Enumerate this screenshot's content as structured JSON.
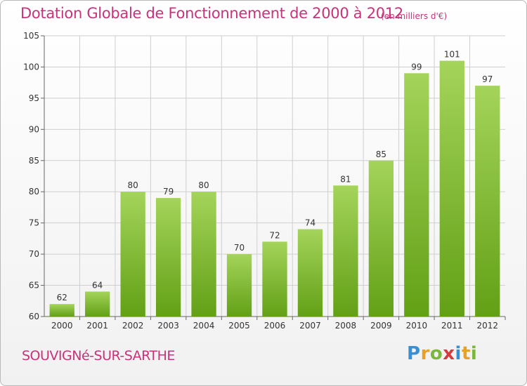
{
  "header": {
    "title": "Dotation Globale de Fonctionnement de 2000 à 2012",
    "subtitle": "(en milliers d'€)"
  },
  "footer": {
    "commune": "SOUVIGNé-SUR-SARTHE",
    "logo_text": "Proxiti"
  },
  "colors": {
    "title": "#c8327a",
    "bar_light": "#a4d45a",
    "bar_dark": "#62a016",
    "grid": "#cfcfcf"
  },
  "chart_data": {
    "type": "bar",
    "title": "Dotation Globale de Fonctionnement de 2000 à 2012",
    "subtitle": "(en milliers d'€)",
    "xlabel": "",
    "ylabel": "",
    "categories": [
      "2000",
      "2001",
      "2002",
      "2003",
      "2004",
      "2005",
      "2006",
      "2007",
      "2008",
      "2009",
      "2010",
      "2011",
      "2012"
    ],
    "values": [
      62,
      64,
      80,
      79,
      80,
      70,
      72,
      74,
      81,
      85,
      99,
      101,
      97
    ],
    "ylim": [
      60,
      105
    ],
    "yticks": [
      60,
      65,
      70,
      75,
      80,
      85,
      90,
      95,
      100,
      105
    ],
    "grid": true,
    "legend": "none"
  }
}
